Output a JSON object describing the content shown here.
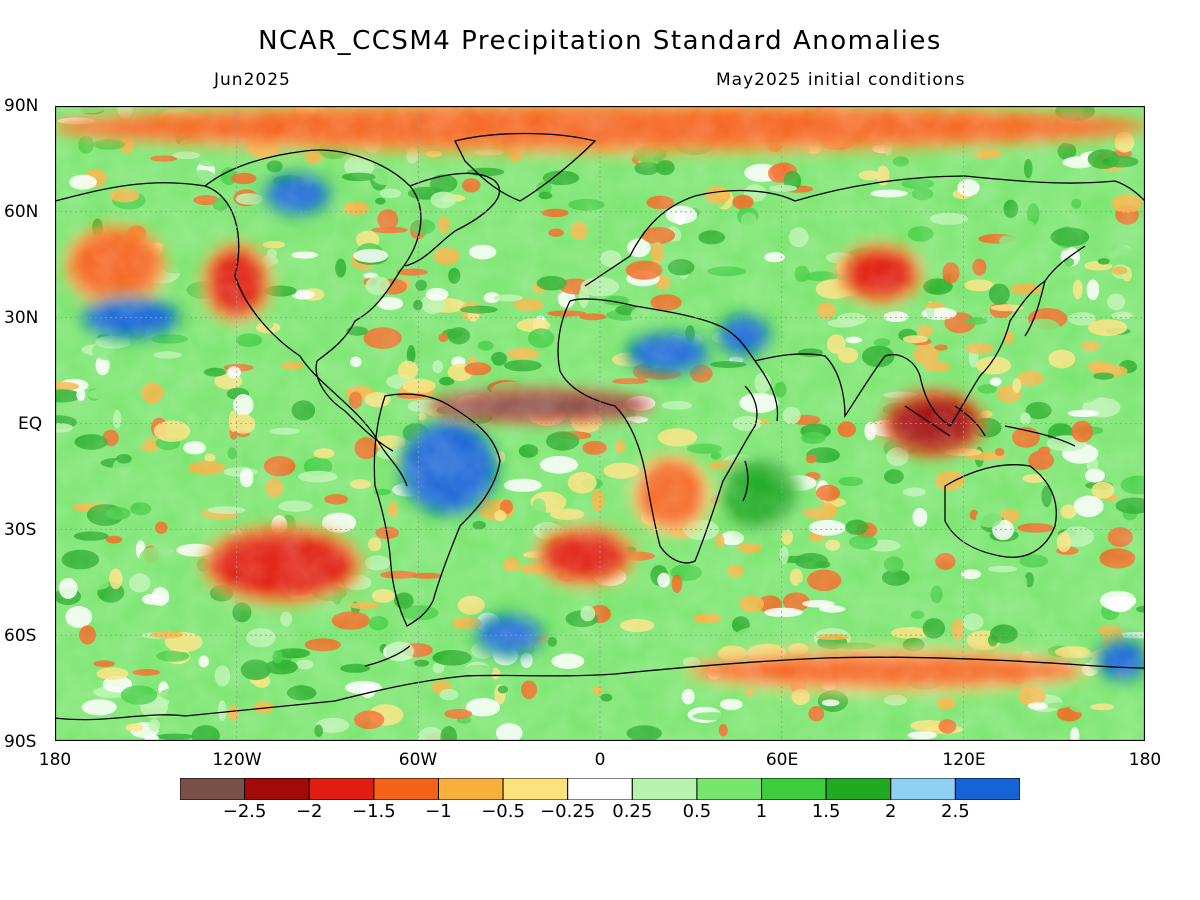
{
  "title": "NCAR_CCSM4 Precipitation Standard Anomalies",
  "valid_month": "Jun2025",
  "init_label": "May2025 initial conditions",
  "lat_labels": [
    "90N",
    "60N",
    "30N",
    "EQ",
    "30S",
    "60S",
    "90S"
  ],
  "lon_labels": [
    "180",
    "120W",
    "60W",
    "0",
    "60E",
    "120E",
    "180"
  ],
  "colorbar": {
    "colors": [
      "#7a5148",
      "#a30b0b",
      "#e01d10",
      "#f5621a",
      "#f8b03c",
      "#fce27a",
      "#ffffff",
      "#b7f3ad",
      "#78e56c",
      "#3ccc3c",
      "#1faa22",
      "#8fd0f5",
      "#1563d6"
    ],
    "labels": [
      "-2.5",
      "-2",
      "-1.5",
      "-1",
      "-0.5",
      "-0.25",
      "0.25",
      "0.5",
      "1",
      "1.5",
      "2",
      "2.5"
    ]
  },
  "chart_data": {
    "type": "heatmap",
    "title": "NCAR_CCSM4 Precipitation Standard Anomalies",
    "subtitle_left": "Jun2025",
    "subtitle_right": "May2025 initial conditions",
    "xlim": [
      -180,
      180
    ],
    "ylim": [
      -90,
      90
    ],
    "x_ticks": [
      -180,
      -120,
      -60,
      0,
      60,
      120,
      180
    ],
    "y_ticks": [
      90,
      60,
      30,
      0,
      -30,
      -60,
      -90
    ],
    "grid": true,
    "levels": [
      -2.5,
      -2,
      -1.5,
      -1,
      -0.5,
      -0.25,
      0.25,
      0.5,
      1,
      1.5,
      2,
      2.5
    ],
    "background_value": 0.7,
    "anomaly_regions": [
      {
        "name": "Arctic dry band",
        "lon": [
          -180,
          180
        ],
        "lat": [
          78,
          90
        ],
        "value": -1.5
      },
      {
        "name": "Intertropical Atlantic dry band",
        "lon": [
          -55,
          15
        ],
        "lat": [
          2,
          8
        ],
        "value": -2.8
      },
      {
        "name": "Amazon wet",
        "lon": [
          -65,
          -35
        ],
        "lat": [
          -25,
          0
        ],
        "value": 2.8
      },
      {
        "name": "Southern Indian Ocean wet",
        "lon": [
          40,
          65
        ],
        "lat": [
          -30,
          -10
        ],
        "value": 1.5
      },
      {
        "name": "Southern Africa dry",
        "lon": [
          12,
          35
        ],
        "lat": [
          -30,
          -10
        ],
        "value": -1.3
      },
      {
        "name": "Maritime Continent dry",
        "lon": [
          95,
          125
        ],
        "lat": [
          -8,
          8
        ],
        "value": -2.2
      },
      {
        "name": "South Pacific dry",
        "lon": [
          -130,
          -80
        ],
        "lat": [
          -50,
          -30
        ],
        "value": -1.8
      },
      {
        "name": "South Atlantic dry",
        "lon": [
          -20,
          10
        ],
        "lat": [
          -45,
          -30
        ],
        "value": -1.8
      },
      {
        "name": "Antarctic coast dry",
        "lon": [
          30,
          160
        ],
        "lat": [
          -75,
          -65
        ],
        "value": -1.3
      },
      {
        "name": "Southern Ocean wet",
        "lon": [
          -40,
          -20
        ],
        "lat": [
          -65,
          -55
        ],
        "value": 2.8
      },
      {
        "name": "Ross Sea wet",
        "lon": [
          165,
          180
        ],
        "lat": [
          -72,
          -62
        ],
        "value": 2.8
      },
      {
        "name": "North Pacific dry",
        "lon": [
          -175,
          -145
        ],
        "lat": [
          35,
          55
        ],
        "value": -1.5
      },
      {
        "name": "Western North America dry",
        "lon": [
          -130,
          -110
        ],
        "lat": [
          30,
          50
        ],
        "value": -1.8
      },
      {
        "name": "Central Asia dry",
        "lon": [
          80,
          105
        ],
        "lat": [
          35,
          50
        ],
        "value": -1.6
      },
      {
        "name": "Saharan wet",
        "lon": [
          10,
          35
        ],
        "lat": [
          15,
          25
        ],
        "value": 2.5
      },
      {
        "name": "Arabian wet",
        "lon": [
          40,
          55
        ],
        "lat": [
          20,
          30
        ],
        "value": 2.5
      },
      {
        "name": "Central Pacific wet",
        "lon": [
          -170,
          -140
        ],
        "lat": [
          25,
          35
        ],
        "value": 2.5
      },
      {
        "name": "Northern Canada wet",
        "lon": [
          -110,
          -90
        ],
        "lat": [
          60,
          70
        ],
        "value": 2.5
      }
    ]
  }
}
